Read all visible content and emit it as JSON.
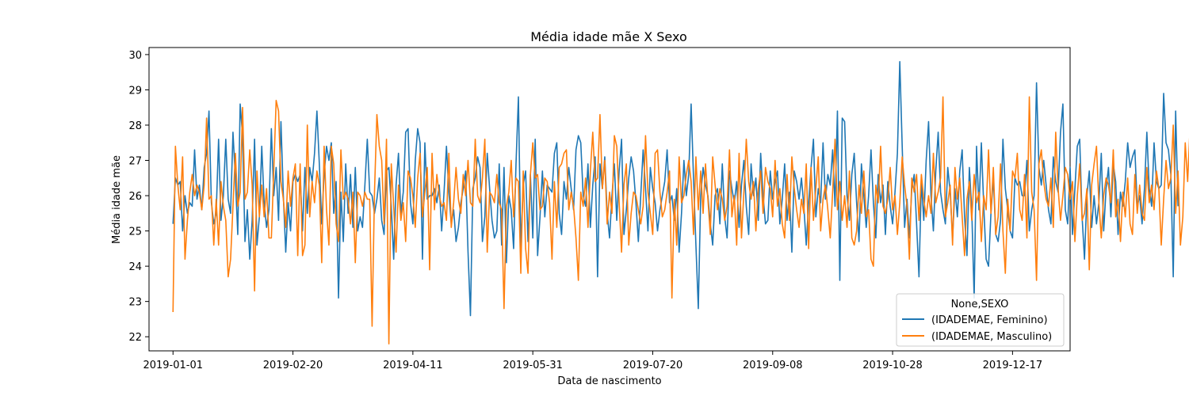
{
  "chart_data": {
    "type": "line",
    "title": "Média idade mãe X Sexo",
    "xlabel": "Data de nascimento",
    "ylabel": "Média idade mãe",
    "x_start": "2019-01-01",
    "x_end": "2019-12-31",
    "xlim": [
      "2018-12-22",
      "2020-01-10"
    ],
    "ylim": [
      21.6,
      30.2
    ],
    "x_ticks": [
      "2019-01-01",
      "2019-02-20",
      "2019-04-11",
      "2019-05-31",
      "2019-07-20",
      "2019-09-08",
      "2019-10-28",
      "2019-12-17"
    ],
    "y_ticks": [
      22,
      23,
      24,
      25,
      26,
      27,
      28,
      29,
      30
    ],
    "grid": false,
    "legend": {
      "title": "None,SEXO",
      "position": "lower-right"
    },
    "series": [
      {
        "name": "(IDADEMAE, Feminino)",
        "color": "#1f77b4",
        "values": [
          25.2,
          26.5,
          26.3,
          26.4,
          25.0,
          26.0,
          25.5,
          25.8,
          25.7,
          27.3,
          25.9,
          26.3,
          25.6,
          26.8,
          27.2,
          28.4,
          25.8,
          25.2,
          25.5,
          27.6,
          25.3,
          26.0,
          27.6,
          25.9,
          25.5,
          27.8,
          26.5,
          24.9,
          28.6,
          27.7,
          24.7,
          25.6,
          24.2,
          25.3,
          27.6,
          24.6,
          25.4,
          27.4,
          25.8,
          25.1,
          25.6,
          27.9,
          26.0,
          26.8,
          25.3,
          28.1,
          26.0,
          24.4,
          25.8,
          25.0,
          26.4,
          26.6,
          26.4,
          26.6,
          25.0,
          26.8,
          25.5,
          26.8,
          26.4,
          27.2,
          28.4,
          26.9,
          25.2,
          26.6,
          27.4,
          27.0,
          27.5,
          25.5,
          26.4,
          23.1,
          26.1,
          24.7,
          26.9,
          25.5,
          26.6,
          25.1,
          26.8,
          25.0,
          25.4,
          25.1,
          26.3,
          27.6,
          26.1,
          26.0,
          25.5,
          25.9,
          26.5,
          25.3,
          24.9,
          26.7,
          26.8,
          25.7,
          24.2,
          26.3,
          27.2,
          25.5,
          26.1,
          27.8,
          27.9,
          25.8,
          25.2,
          27.0,
          27.9,
          27.5,
          24.2,
          27.5,
          25.9,
          26.0,
          26.0,
          26.2,
          25.8,
          26.3,
          25.0,
          26.1,
          27.4,
          26.1,
          25.2,
          25.6,
          24.7,
          25.1,
          25.8,
          26.2,
          26.7,
          24.4,
          22.6,
          26.2,
          26.5,
          27.1,
          26.8,
          24.7,
          25.4,
          27.2,
          26.2,
          25.3,
          24.8,
          25.0,
          26.9,
          24.6,
          26.8,
          24.1,
          26.0,
          25.6,
          24.5,
          26.9,
          28.8,
          24.5,
          26.3,
          26.7,
          24.7,
          26.6,
          24.8,
          27.6,
          24.3,
          25.4,
          26.7,
          25.4,
          26.3,
          26.2,
          26.1,
          27.2,
          27.5,
          25.5,
          24.9,
          26.4,
          25.9,
          26.8,
          26.2,
          25.6,
          27.3,
          27.7,
          27.5,
          26.0,
          25.7,
          26.9,
          25.1,
          26.3,
          27.1,
          23.7,
          26.9,
          26.2,
          27.1,
          25.5,
          24.8,
          26.0,
          26.9,
          25.3,
          26.7,
          27.6,
          24.9,
          25.6,
          26.5,
          27.1,
          26.7,
          25.8,
          24.7,
          26.0,
          27.3,
          26.2,
          25.0,
          26.8,
          26.2,
          25.8,
          25.0,
          25.6,
          26.0,
          26.4,
          27.3,
          25.8,
          26.0,
          25.3,
          26.2,
          24.4,
          25.5,
          27.0,
          26.0,
          26.6,
          28.6,
          26.5,
          24.6,
          22.8,
          26.0,
          26.8,
          26.3,
          26.0,
          25.2,
          24.6,
          26.0,
          26.2,
          25.2,
          26.9,
          25.4,
          24.8,
          26.7,
          26.2,
          25.8,
          26.4,
          25.1,
          26.3,
          27.0,
          25.7,
          24.9,
          26.9,
          26.0,
          26.5,
          25.3,
          27.2,
          26.0,
          25.2,
          25.3,
          26.7,
          25.9,
          26.4,
          26.7,
          25.2,
          25.9,
          26.9,
          25.3,
          26.1,
          24.4,
          26.7,
          26.4,
          25.9,
          26.5,
          25.7,
          24.6,
          25.8,
          26.8,
          27.6,
          25.4,
          26.2,
          25.8,
          27.5,
          25.9,
          26.6,
          26.3,
          27.3,
          25.7,
          28.4,
          23.6,
          28.2,
          28.1,
          26.0,
          25.3,
          26.6,
          27.2,
          25.8,
          24.7,
          26.9,
          26.0,
          25.1,
          26.0,
          27.3,
          25.8,
          24.8,
          26.6,
          25.8,
          26.3,
          24.9,
          26.4,
          25.7,
          25.2,
          26.1,
          27.2,
          29.8,
          27.4,
          25.1,
          25.9,
          24.8,
          26.2,
          26.6,
          25.2,
          23.7,
          26.4,
          25.3,
          27.0,
          28.1,
          26.0,
          25.0,
          26.7,
          27.8,
          26.1,
          25.6,
          25.2,
          26.8,
          26.1,
          24.8,
          26.2,
          25.4,
          26.7,
          27.3,
          25.4,
          24.3,
          26.8,
          25.6,
          23.1,
          27.4,
          25.6,
          27.5,
          25.7,
          24.2,
          24.0,
          25.5,
          26.5,
          24.9,
          24.7,
          25.3,
          27.6,
          26.2,
          25.6,
          25.0,
          24.8,
          26.5,
          26.3,
          26.4,
          26.0,
          26.0,
          27.0,
          25.0,
          25.6,
          26.0,
          29.2,
          26.8,
          26.3,
          27.0,
          26.3,
          25.6,
          25.2,
          27.1,
          26.4,
          26.1,
          27.8,
          28.6,
          25.6,
          25.2,
          26.8,
          24.9,
          26.2,
          27.4,
          27.6,
          25.4,
          24.2,
          26.0,
          26.7,
          25.1,
          26.0,
          25.2,
          25.8,
          27.2,
          25.0,
          26.2,
          26.8,
          25.4,
          26.9,
          26.4,
          24.9,
          26.1,
          25.7,
          26.4,
          27.5,
          26.8,
          27.1,
          27.3,
          25.7,
          26.0,
          25.2,
          26.2,
          27.8,
          26.2,
          25.7,
          27.5,
          26.4,
          26.2,
          26.3,
          28.9,
          27.5,
          27.3,
          26.6,
          23.7,
          28.4,
          25.7
        ]
      },
      {
        "name": "(IDADEMAE, Masculino)",
        "color": "#ff7f0e",
        "values": [
          22.7,
          27.4,
          26.3,
          25.6,
          27.1,
          24.2,
          25.3,
          26.1,
          26.6,
          26.0,
          26.3,
          26.1,
          25.6,
          26.3,
          28.2,
          25.9,
          26.0,
          24.6,
          25.9,
          24.6,
          26.4,
          25.7,
          25.3,
          23.7,
          24.2,
          25.7,
          27.2,
          25.7,
          26.1,
          28.5,
          25.9,
          26.1,
          27.3,
          26.3,
          23.3,
          26.7,
          25.4,
          26.3,
          25.4,
          26.2,
          24.8,
          24.8,
          26.7,
          28.7,
          28.4,
          26.4,
          25.9,
          25.1,
          26.7,
          25.7,
          26.5,
          26.9,
          24.3,
          26.9,
          24.3,
          24.6,
          28.0,
          25.4,
          26.4,
          25.8,
          26.7,
          26.3,
          24.1,
          27.4,
          25.6,
          24.6,
          27.4,
          26.9,
          25.2,
          24.7,
          27.3,
          25.9,
          26.1,
          25.9,
          25.2,
          26.1,
          24.1,
          26.1,
          26.0,
          25.7,
          26.1,
          25.9,
          25.9,
          22.3,
          26.1,
          28.3,
          27.4,
          27.0,
          25.2,
          27.6,
          21.8,
          26.9,
          25.7,
          24.4,
          26.3,
          25.3,
          25.8,
          24.7,
          26.7,
          26.5,
          26.0,
          25.1,
          26.5,
          27.2,
          25.4,
          26.1,
          26.8,
          23.9,
          27.2,
          25.6,
          26.6,
          26.0,
          25.7,
          25.8,
          25.3,
          27.2,
          25.1,
          25.8,
          26.8,
          25.9,
          25.5,
          26.6,
          26.0,
          27.0,
          25.8,
          25.7,
          27.6,
          26.0,
          25.8,
          26.5,
          27.6,
          24.4,
          26.1,
          26.0,
          25.8,
          26.6,
          25.8,
          25.6,
          22.8,
          25.7,
          26.1,
          27.0,
          25.4,
          26.5,
          26.4,
          23.8,
          26.7,
          24.5,
          23.8,
          26.6,
          27.5,
          26.5,
          26.6,
          25.6,
          25.7,
          26.5,
          26.4,
          25.8,
          24.2,
          26.4,
          25.1,
          26.8,
          26.9,
          27.2,
          27.3,
          25.6,
          26.1,
          25.7,
          24.8,
          23.6,
          26.1,
          25.7,
          26.5,
          25.1,
          26.7,
          27.8,
          26.4,
          26.5,
          28.3,
          26.2,
          27.0,
          25.2,
          26.1,
          25.5,
          27.7,
          27.4,
          25.8,
          24.4,
          26.3,
          26.9,
          24.6,
          25.5,
          26.1,
          26.0,
          25.6,
          25.2,
          25.7,
          27.7,
          26.1,
          25.5,
          24.9,
          27.2,
          27.3,
          26.1,
          25.4,
          25.6,
          26.1,
          26.7,
          23.1,
          25.9,
          24.6,
          27.1,
          25.8,
          26.0,
          26.6,
          27.0,
          26.4,
          24.9,
          27.1,
          25.6,
          26.7,
          25.5,
          26.9,
          25.9,
          24.9,
          27.1,
          26.3,
          25.6,
          26.2,
          25.9,
          25.3,
          25.7,
          27.3,
          25.4,
          26.0,
          24.6,
          27.2,
          24.8,
          26.1,
          27.6,
          26.4,
          25.9,
          26.4,
          25.0,
          26.2,
          26.7,
          25.5,
          26.8,
          26.4,
          26.2,
          25.4,
          27.0,
          25.7,
          26.2,
          25.2,
          24.8,
          26.6,
          25.3,
          27.1,
          26.2,
          25.6,
          25.1,
          25.9,
          25.5,
          26.9,
          24.5,
          26.8,
          25.3,
          26.2,
          27.1,
          25.0,
          25.9,
          26.3,
          25.6,
          24.8,
          26.1,
          27.6,
          25.6,
          26.4,
          25.3,
          26.0,
          25.1,
          26.7,
          24.8,
          24.6,
          25.0,
          26.3,
          25.5,
          26.7,
          25.4,
          25.6,
          24.2,
          24.0,
          26.3,
          25.8,
          27.4,
          25.7,
          25.5,
          25.9,
          26.8,
          25.6,
          26.0,
          24.9,
          25.8,
          27.1,
          26.3,
          25.7,
          24.2,
          26.5,
          26.1,
          26.6,
          25.3,
          26.6,
          25.9,
          25.4,
          26.0,
          25.5,
          27.2,
          25.8,
          26.1,
          26.5,
          28.8,
          25.4,
          25.8,
          26.3,
          24.6,
          26.8,
          25.9,
          26.5,
          25.4,
          24.3,
          25.9,
          26.4,
          25.3,
          26.6,
          25.8,
          26.1,
          24.7,
          26.0,
          25.6,
          27.3,
          25.5,
          26.8,
          24.9,
          25.4,
          26.9,
          25.0,
          23.8,
          25.9,
          25.0,
          26.7,
          26.5,
          27.2,
          25.6,
          25.3,
          26.6,
          24.8,
          28.8,
          26.1,
          25.6,
          23.6,
          26.9,
          27.3,
          26.4,
          25.9,
          25.7,
          26.5,
          25.1,
          27.8,
          26.2,
          25.3,
          26.0,
          26.8,
          26.6,
          25.9,
          26.4,
          24.7,
          26.0,
          26.9,
          25.3,
          25.5,
          26.2,
          23.9,
          26.3,
          26.9,
          27.4,
          25.8,
          24.8,
          26.0,
          26.5,
          26.3,
          25.8,
          27.3,
          25.4,
          25.9,
          24.7,
          26.1,
          25.4,
          26.5,
          25.2,
          24.9,
          26.6,
          25.5,
          26.3,
          25.5,
          25.3,
          26.8,
          25.8,
          26.3,
          25.6,
          26.7,
          26.2,
          24.6,
          25.9,
          27.0,
          26.2,
          26.5,
          28.0,
          25.5,
          26.7,
          24.6,
          25.4,
          27.5,
          26.4,
          27.9,
          25.9,
          26.6,
          25.4,
          24.3,
          27.0,
          24.4
        ]
      }
    ]
  }
}
